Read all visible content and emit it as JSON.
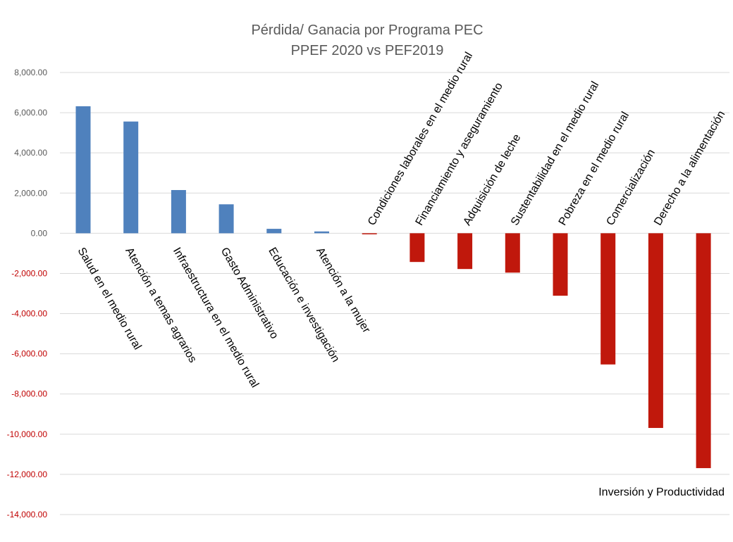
{
  "chart_data": {
    "type": "bar",
    "title_line1": "Pérdida/ Ganacia por Programa PEC",
    "title_line2": "PPEF 2020 vs PEF2019",
    "categories": [
      "Salud en el medio rural",
      "Atención a temas agrarios",
      "Infraestructura en el medio rural",
      "Gasto Administrativo",
      "Educación e investigación",
      "Atención a la mujer",
      "Condiciones laborales en el medio rural",
      "Financiamiento y aseguramiento",
      "Adquisición de leche",
      "Sustentabilidad en el medio rural",
      "Pobreza en el medio rural",
      "Comercialización",
      "Derecho a la alimentación",
      "Inversión y Productividad"
    ],
    "values": [
      6320,
      5560,
      2150,
      1440,
      220,
      90,
      -30,
      -1430,
      -1780,
      -1960,
      -3110,
      -6530,
      -9690,
      -11690
    ],
    "ylim": [
      -14000,
      8000
    ],
    "yticks": [
      "8,000.00",
      "6,000.00",
      "4,000.00",
      "2,000.00",
      "0.00",
      "-2,000.00",
      "-4,000.00",
      "-6,000.00",
      "-8,000.00",
      "-10,000.00",
      "-12,000.00",
      "-14,000.00"
    ],
    "ytick_values": [
      8000,
      6000,
      4000,
      2000,
      0,
      -2000,
      -4000,
      -6000,
      -8000,
      -10000,
      -12000,
      -14000
    ],
    "colors": {
      "positive": "#4f81bd",
      "negative": "#c0180c",
      "grid": "#d9d9d9",
      "negative_tick": "#c00000"
    },
    "grid": true,
    "legend": "none"
  }
}
